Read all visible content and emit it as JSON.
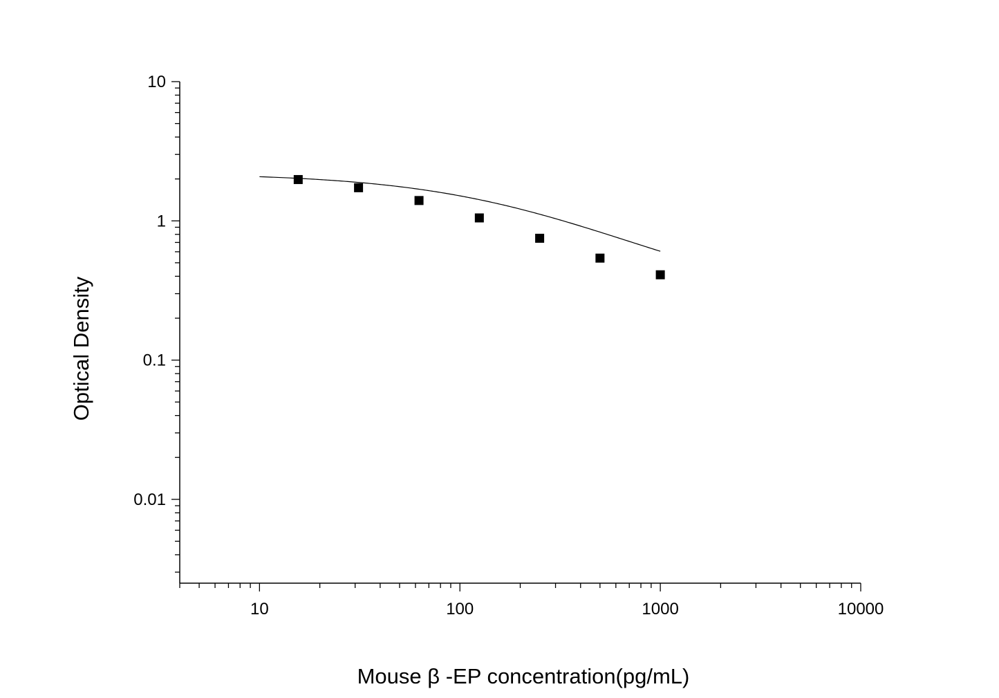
{
  "chart_data": {
    "type": "scatter",
    "title": "",
    "xlabel": "Mouse β -EP concentration(pg/mL)",
    "ylabel": "Optical Density",
    "x_scale": "log",
    "y_scale": "log",
    "xlim": [
      4,
      10000
    ],
    "ylim": [
      0.0025,
      10
    ],
    "x_tick_labels": [
      "10",
      "100",
      "1000",
      "10000"
    ],
    "y_tick_labels": [
      "10",
      "1",
      "0.1",
      "0.01"
    ],
    "grid": false,
    "series": [
      {
        "marker": "square",
        "color": "#000000",
        "x": [
          15.6,
          31.2,
          62.5,
          125,
          250,
          500,
          1000
        ],
        "y": [
          1.98,
          1.73,
          1.4,
          1.05,
          0.75,
          0.54,
          0.41
        ],
        "fit_curve": true
      }
    ]
  }
}
